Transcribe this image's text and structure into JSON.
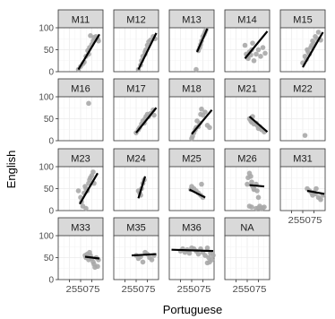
{
  "chart_data": {
    "type": "scatter",
    "facet_by": "class group",
    "xlabel": "Portuguese",
    "ylabel": "English",
    "xlim": [
      0,
      100
    ],
    "ylim": [
      0,
      100
    ],
    "x_ticks": [
      25,
      50,
      75
    ],
    "y_ticks": [
      0,
      50,
      100
    ],
    "grid": true,
    "point_color": "#a9a9a9",
    "line_color": "#000000",
    "panel_background": "#ffffff",
    "strip_background": "#d9d9d9",
    "grid_color": "#ebebeb",
    "facets": [
      {
        "label": "M11",
        "points": [
          [
            45,
            5
          ],
          [
            50,
            12
          ],
          [
            55,
            18
          ],
          [
            58,
            22
          ],
          [
            62,
            35
          ],
          [
            68,
            40
          ],
          [
            70,
            55
          ],
          [
            75,
            62
          ],
          [
            78,
            70
          ],
          [
            80,
            78
          ],
          [
            84,
            80
          ],
          [
            88,
            75
          ],
          [
            72,
            82
          ],
          [
            90,
            70
          ],
          [
            66,
            48
          ]
        ],
        "fit": [
          [
            45,
            5
          ],
          [
            92,
            85
          ]
        ]
      },
      {
        "label": "M12",
        "points": [
          [
            55,
            5
          ],
          [
            60,
            15
          ],
          [
            62,
            25
          ],
          [
            65,
            35
          ],
          [
            70,
            45
          ],
          [
            72,
            50
          ],
          [
            75,
            60
          ],
          [
            78,
            68
          ],
          [
            82,
            72
          ],
          [
            88,
            80
          ],
          [
            92,
            75
          ],
          [
            70,
            40
          ]
        ],
        "fit": [
          [
            55,
            5
          ],
          [
            95,
            88
          ]
        ]
      },
      {
        "label": "M13",
        "points": [
          [
            60,
            5
          ],
          [
            65,
            48
          ],
          [
            68,
            55
          ],
          [
            70,
            62
          ],
          [
            72,
            70
          ],
          [
            75,
            80
          ],
          [
            78,
            85
          ],
          [
            80,
            90
          ],
          [
            82,
            95
          ]
        ],
        "fit": [
          [
            62,
            45
          ],
          [
            85,
            98
          ]
        ]
      },
      {
        "label": "M14",
        "points": [
          [
            45,
            60
          ],
          [
            48,
            40
          ],
          [
            50,
            35
          ],
          [
            52,
            30
          ],
          [
            55,
            45
          ],
          [
            58,
            38
          ],
          [
            60,
            50
          ],
          [
            62,
            65
          ],
          [
            65,
            25
          ],
          [
            70,
            40
          ],
          [
            75,
            50
          ],
          [
            80,
            35
          ],
          [
            85,
            55
          ],
          [
            90,
            42
          ]
        ],
        "fit": [
          [
            45,
            30
          ],
          [
            95,
            92
          ]
        ]
      },
      {
        "label": "M15",
        "points": [
          [
            50,
            20
          ],
          [
            55,
            35
          ],
          [
            58,
            28
          ],
          [
            60,
            50
          ],
          [
            62,
            45
          ],
          [
            65,
            40
          ],
          [
            70,
            60
          ],
          [
            72,
            70
          ],
          [
            75,
            65
          ],
          [
            78,
            80
          ],
          [
            82,
            75
          ],
          [
            85,
            90
          ],
          [
            90,
            72
          ],
          [
            68,
            55
          ]
        ],
        "fit": [
          [
            50,
            10
          ],
          [
            95,
            90
          ]
        ]
      },
      {
        "label": "M16",
        "points": [
          [
            68,
            85
          ]
        ],
        "fit": null
      },
      {
        "label": "M17",
        "points": [
          [
            50,
            18
          ],
          [
            55,
            25
          ],
          [
            58,
            30
          ],
          [
            62,
            38
          ],
          [
            65,
            45
          ],
          [
            68,
            40
          ],
          [
            70,
            50
          ],
          [
            72,
            55
          ],
          [
            75,
            60
          ],
          [
            78,
            55
          ],
          [
            82,
            62
          ],
          [
            88,
            70
          ],
          [
            90,
            58
          ]
        ],
        "fit": [
          [
            50,
            18
          ],
          [
            95,
            75
          ]
        ]
      },
      {
        "label": "M18",
        "points": [
          [
            50,
            5
          ],
          [
            52,
            10
          ],
          [
            55,
            18
          ],
          [
            58,
            25
          ],
          [
            60,
            30
          ],
          [
            62,
            45
          ],
          [
            65,
            32
          ],
          [
            68,
            40
          ],
          [
            70,
            60
          ],
          [
            72,
            72
          ],
          [
            75,
            58
          ],
          [
            80,
            65
          ],
          [
            85,
            35
          ],
          [
            90,
            30
          ]
        ],
        "fit": [
          [
            50,
            15
          ],
          [
            95,
            70
          ]
        ]
      },
      {
        "label": "M21",
        "points": [
          [
            55,
            50
          ],
          [
            58,
            45
          ],
          [
            60,
            42
          ],
          [
            62,
            55
          ],
          [
            65,
            38
          ],
          [
            70,
            40
          ],
          [
            72,
            35
          ],
          [
            75,
            28
          ],
          [
            78,
            32
          ],
          [
            82,
            25
          ],
          [
            88,
            20
          ]
        ],
        "fit": [
          [
            55,
            55
          ],
          [
            95,
            20
          ]
        ]
      },
      {
        "label": "M22",
        "points": [
          [
            55,
            12
          ]
        ],
        "fit": null
      },
      {
        "label": "M23",
        "points": [
          [
            45,
            45
          ],
          [
            50,
            30
          ],
          [
            52,
            20
          ],
          [
            55,
            10
          ],
          [
            58,
            40
          ],
          [
            60,
            55
          ],
          [
            62,
            50
          ],
          [
            65,
            45
          ],
          [
            68,
            62
          ],
          [
            70,
            70
          ],
          [
            72,
            75
          ],
          [
            75,
            80
          ],
          [
            78,
            88
          ],
          [
            80,
            62
          ],
          [
            62,
            5
          ]
        ],
        "fit": [
          [
            48,
            15
          ],
          [
            88,
            85
          ]
        ]
      },
      {
        "label": "M24",
        "points": [
          [
            55,
            45
          ],
          [
            58,
            40
          ],
          [
            60,
            35
          ],
          [
            62,
            50
          ],
          [
            65,
            62
          ],
          [
            68,
            70
          ]
        ],
        "fit": [
          [
            55,
            28
          ],
          [
            70,
            78
          ]
        ]
      },
      {
        "label": "M25",
        "points": [
          [
            48,
            48
          ],
          [
            50,
            55
          ],
          [
            55,
            50
          ],
          [
            60,
            45
          ],
          [
            65,
            40
          ],
          [
            70,
            35
          ],
          [
            75,
            30
          ],
          [
            72,
            60
          ]
        ],
        "fit": [
          [
            45,
            48
          ],
          [
            80,
            30
          ]
        ]
      },
      {
        "label": "M26",
        "points": [
          [
            50,
            60
          ],
          [
            52,
            75
          ],
          [
            55,
            85
          ],
          [
            58,
            78
          ],
          [
            60,
            65
          ],
          [
            62,
            55
          ],
          [
            65,
            50
          ],
          [
            70,
            60
          ],
          [
            72,
            45
          ],
          [
            75,
            30
          ],
          [
            78,
            10
          ],
          [
            80,
            5
          ],
          [
            82,
            4
          ],
          [
            85,
            6
          ],
          [
            88,
            8
          ],
          [
            55,
            10
          ],
          [
            60,
            8
          ],
          [
            70,
            5
          ],
          [
            75,
            6
          ],
          [
            65,
            48
          ]
        ],
        "fit": [
          [
            55,
            58
          ],
          [
            88,
            55
          ]
        ]
      },
      {
        "label": "M31",
        "points": [
          [
            60,
            50
          ],
          [
            65,
            45
          ],
          [
            70,
            40
          ],
          [
            72,
            35
          ],
          [
            75,
            42
          ],
          [
            78,
            38
          ],
          [
            80,
            50
          ],
          [
            85,
            30
          ],
          [
            90,
            25
          ],
          [
            95,
            35
          ]
        ],
        "fit": [
          [
            60,
            45
          ],
          [
            98,
            38
          ]
        ]
      },
      {
        "label": "M33",
        "points": [
          [
            60,
            55
          ],
          [
            62,
            50
          ],
          [
            65,
            58
          ],
          [
            68,
            45
          ],
          [
            70,
            62
          ],
          [
            72,
            55
          ],
          [
            75,
            48
          ],
          [
            78,
            40
          ],
          [
            80,
            35
          ],
          [
            82,
            28
          ],
          [
            85,
            50
          ],
          [
            88,
            30
          ],
          [
            90,
            45
          ]
        ],
        "fit": [
          [
            60,
            52
          ],
          [
            92,
            48
          ]
        ]
      },
      {
        "label": "M35",
        "points": [
          [
            50,
            55
          ],
          [
            55,
            48
          ],
          [
            60,
            52
          ],
          [
            65,
            40
          ],
          [
            70,
            62
          ],
          [
            75,
            58
          ],
          [
            80,
            50
          ],
          [
            85,
            45
          ],
          [
            90,
            55
          ]
        ],
        "fit": [
          [
            40,
            55
          ],
          [
            95,
            58
          ]
        ]
      },
      {
        "label": "M36",
        "points": [
          [
            25,
            65
          ],
          [
            30,
            70
          ],
          [
            35,
            62
          ],
          [
            40,
            68
          ],
          [
            45,
            60
          ],
          [
            50,
            72
          ],
          [
            55,
            70
          ],
          [
            60,
            65
          ],
          [
            65,
            58
          ],
          [
            70,
            70
          ],
          [
            75,
            62
          ],
          [
            80,
            55
          ],
          [
            85,
            72
          ],
          [
            88,
            50
          ],
          [
            90,
            40
          ],
          [
            92,
            60
          ],
          [
            95,
            45
          ],
          [
            98,
            55
          ],
          [
            85,
            38
          ]
        ],
        "fit": [
          [
            5,
            68
          ],
          [
            98,
            65
          ]
        ]
      },
      {
        "label": "NA",
        "points": [],
        "fit": null
      }
    ]
  }
}
